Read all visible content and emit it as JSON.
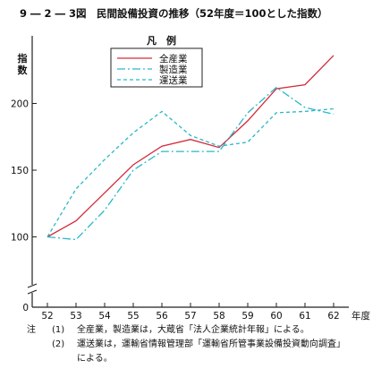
{
  "figure_title": "9 ― 2 ― 3図　民間設備投資の推移（52年度＝100とした指数）",
  "chart_data": {
    "type": "line",
    "title": "9 ― 2 ― 3図　民間設備投資の推移（52年度＝100とした指数）",
    "ylabel": "指数",
    "xlabel": "年度",
    "x": [
      "52",
      "53",
      "54",
      "55",
      "56",
      "57",
      "58",
      "59",
      "60",
      "61",
      "62"
    ],
    "y_ticks": [
      0,
      100,
      150,
      200
    ],
    "ylim": [
      0,
      240
    ],
    "y_axis_break": true,
    "grid": false,
    "legend_title": "凡　例",
    "legend_position": "top-left",
    "series": [
      {
        "name": "全産業",
        "color": "#d42a3a",
        "style": "solid",
        "values": [
          100,
          112,
          133,
          154,
          168,
          173,
          167,
          187,
          211,
          214,
          236
        ]
      },
      {
        "name": "製造業",
        "color": "#2ab7c9",
        "style": "dashdot",
        "values": [
          100,
          98,
          120,
          150,
          164,
          164,
          164,
          193,
          212,
          197,
          192
        ]
      },
      {
        "name": "運送業",
        "color": "#2ab7c9",
        "style": "dashed",
        "values": [
          100,
          136,
          158,
          178,
          194,
          176,
          168,
          171,
          193,
          194,
          196
        ]
      }
    ]
  },
  "notes": {
    "lead": "注",
    "items": [
      {
        "num": "(1)",
        "text": "全産業，製造業は，大蔵省「法人企業統計年報」による。"
      },
      {
        "num": "(2)",
        "text": "運送業は，運輸省情報管理部「運輸省所管事業設備投資動向調査」",
        "cont": "による。"
      }
    ]
  }
}
